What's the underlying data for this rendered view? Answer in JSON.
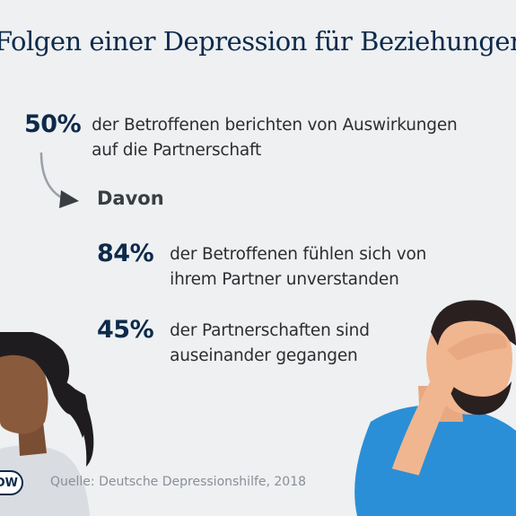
{
  "title": "Folgen einer Depression für Beziehungen",
  "stats": [
    {
      "value": "50%",
      "text_line1": "der Betroffenen berichten von Auswirkungen",
      "text_line2": "auf die Partnerschaft"
    },
    {
      "value": "84%",
      "text_line1": "der Betroffenen fühlen sich von",
      "text_line2": "ihrem Partner unverstanden"
    },
    {
      "value": "45%",
      "text_line1": "der Partnerschaften sind",
      "text_line2": "auseinander gegangen"
    }
  ],
  "subheading": "Davon",
  "source": "Quelle: Deutsche Depressionshilfe, 2018",
  "logo_text": "DW",
  "colors": {
    "background": "#eef0f2",
    "accent_navy": "#0d2a4a",
    "text": "#2b2d30",
    "man_shirt": "#2a8fd6",
    "woman_skin": "#8a5a3c",
    "man_skin": "#f0b690"
  },
  "icons": [
    "curved-arrow-icon",
    "dw-logo-icon"
  ]
}
